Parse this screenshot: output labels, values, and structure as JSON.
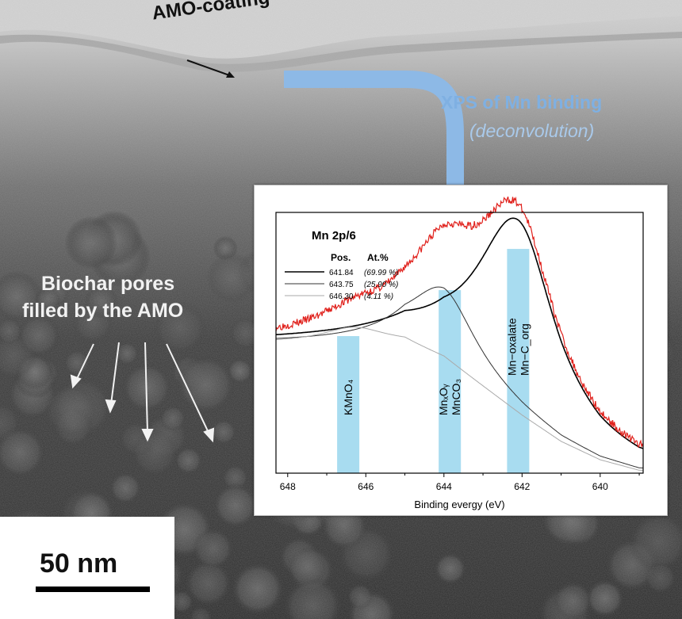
{
  "micrograph": {
    "coating_label": "AMO-coating",
    "xps_title": "XPS of Mn binding",
    "xps_subtitle": "(deconvolution)",
    "pores_line1": "Biochar pores",
    "pores_line2": "filled by the AMO",
    "scale_label": "50 nm",
    "colors": {
      "arrow": "#8db9e6",
      "raw_spectrum": "#e0201b",
      "band": "#a8dcf0"
    }
  },
  "chart_data": {
    "type": "line",
    "title": "Mn 2p/6",
    "xlabel": "Binding evergy (eV)",
    "ylabel": "",
    "xlim": [
      648.3,
      638.9
    ],
    "x_reversed": true,
    "x_ticks": [
      648,
      646,
      644,
      642,
      640
    ],
    "ylim": [
      0,
      1
    ],
    "legend": {
      "header_pos": "Pos.",
      "header_at": "At.%",
      "entries": [
        {
          "pos": "641.84",
          "at": "(69.99 %)"
        },
        {
          "pos": "643.75",
          "at": "(25.90 %)"
        },
        {
          "pos": "646.30",
          "at": "(4.11 %)"
        }
      ],
      "placement": "top-left"
    },
    "components": [
      {
        "center": 642.1,
        "height": 0.74,
        "wl": 1.3,
        "wr": 1.15,
        "color": "#000000"
      },
      {
        "center": 644.0,
        "height": 0.27,
        "wl": 1.1,
        "wr": 1.0,
        "color": "#333333"
      },
      {
        "center": 646.3,
        "height": 0.06,
        "wl": 1.0,
        "wr": 1.0,
        "color": "#aaaaaa"
      }
    ],
    "baseline": [
      {
        "x": 648.3,
        "y": 0.5
      },
      {
        "x": 646.5,
        "y": 0.5
      },
      {
        "x": 645.0,
        "y": 0.5
      },
      {
        "x": 644.0,
        "y": 0.44
      },
      {
        "x": 643.0,
        "y": 0.33
      },
      {
        "x": 642.0,
        "y": 0.22
      },
      {
        "x": 641.0,
        "y": 0.12
      },
      {
        "x": 640.0,
        "y": 0.05
      },
      {
        "x": 639.0,
        "y": 0.01
      }
    ],
    "bands": [
      {
        "center": 646.45,
        "label": "KMnO4",
        "lines": [
          "KMnO₄"
        ]
      },
      {
        "center": 643.85,
        "label": "MnxOy / MnCO3",
        "lines": [
          "MnₓOᵧ",
          "MnCO₃"
        ]
      },
      {
        "center": 642.1,
        "label": "Mn-oxalate / Mn-Corg",
        "lines": [
          "Mn−oxalate",
          "Mn−C_org"
        ]
      }
    ]
  }
}
